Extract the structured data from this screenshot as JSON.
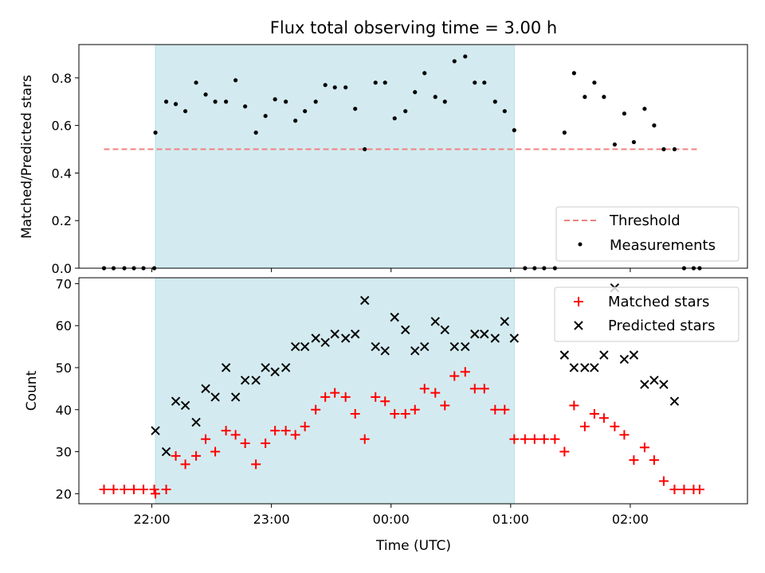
{
  "figure": {
    "title": "Flux total observing time = 3.00 h",
    "xlabel": "Time (UTC)",
    "x_ticks": [
      "22:00",
      "23:00",
      "00:00",
      "01:00",
      "02:00"
    ],
    "x_tick_hours": [
      22,
      23,
      24,
      25,
      26
    ],
    "x_range": [
      21.39,
      26.98
    ],
    "shaded_interval": [
      22.03,
      25.03
    ],
    "shade_color": "#d3ebf0"
  },
  "chart_data": [
    {
      "type": "scatter",
      "ylabel": "Matched/Predicted stars",
      "ylim": [
        0,
        0.94
      ],
      "y_ticks": [
        0.0,
        0.2,
        0.4,
        0.6,
        0.8
      ],
      "legend_position": "lower-right",
      "threshold": {
        "name": "Threshold",
        "value": 0.5,
        "x_range": [
          21.6,
          26.58
        ],
        "color": "#f08080"
      },
      "series": [
        {
          "name": "Measurements",
          "color": "#000000",
          "x": [
            21.6,
            21.68,
            21.77,
            21.85,
            21.93,
            22.02,
            22.03,
            22.12,
            22.2,
            22.28,
            22.37,
            22.45,
            22.53,
            22.62,
            22.7,
            22.78,
            22.87,
            22.95,
            23.03,
            23.12,
            23.2,
            23.28,
            23.37,
            23.45,
            23.53,
            23.62,
            23.7,
            23.78,
            23.87,
            23.95,
            24.03,
            24.12,
            24.2,
            24.28,
            24.37,
            24.45,
            24.53,
            24.62,
            24.7,
            24.78,
            24.87,
            24.95,
            25.03,
            25.12,
            25.2,
            25.28,
            25.37,
            25.45,
            25.53,
            25.62,
            25.7,
            25.78,
            25.87,
            25.95,
            26.03,
            26.12,
            26.2,
            26.28,
            26.37,
            26.45,
            26.53,
            26.58
          ],
          "y": [
            0,
            0,
            0,
            0,
            0,
            0,
            0.57,
            0.7,
            0.69,
            0.66,
            0.78,
            0.73,
            0.7,
            0.7,
            0.79,
            0.68,
            0.57,
            0.64,
            0.71,
            0.7,
            0.62,
            0.66,
            0.7,
            0.77,
            0.76,
            0.76,
            0.67,
            0.5,
            0.78,
            0.78,
            0.63,
            0.66,
            0.74,
            0.82,
            0.72,
            0.7,
            0.87,
            0.89,
            0.78,
            0.78,
            0.7,
            0.66,
            0.58,
            0,
            0,
            0,
            0,
            0.57,
            0.82,
            0.72,
            0.78,
            0.72,
            0.52,
            0.65,
            0.53,
            0.67,
            0.6,
            0.5,
            0.5,
            0,
            0,
            0
          ]
        }
      ]
    },
    {
      "type": "scatter",
      "ylabel": "Count",
      "ylim": [
        17.6,
        71.4
      ],
      "y_ticks": [
        20,
        30,
        40,
        50,
        60,
        70
      ],
      "legend_position": "upper-right",
      "series": [
        {
          "name": "Matched stars",
          "color": "#ff0000",
          "marker": "plus",
          "x": [
            21.6,
            21.68,
            21.77,
            21.85,
            21.93,
            22.02,
            22.03,
            22.12,
            22.2,
            22.28,
            22.37,
            22.45,
            22.53,
            22.62,
            22.7,
            22.78,
            22.87,
            22.95,
            23.03,
            23.12,
            23.2,
            23.28,
            23.37,
            23.45,
            23.53,
            23.62,
            23.7,
            23.78,
            23.87,
            23.95,
            24.03,
            24.12,
            24.2,
            24.28,
            24.37,
            24.45,
            24.53,
            24.62,
            24.7,
            24.78,
            24.87,
            24.95,
            25.03,
            25.12,
            25.2,
            25.28,
            25.37,
            25.45,
            25.53,
            25.62,
            25.7,
            25.78,
            25.87,
            25.95,
            26.03,
            26.12,
            26.2,
            26.28,
            26.37,
            26.45,
            26.53,
            26.58
          ],
          "y": [
            21,
            21,
            21,
            21,
            21,
            21,
            20,
            21,
            29,
            27,
            29,
            33,
            30,
            35,
            34,
            32,
            27,
            32,
            35,
            35,
            34,
            36,
            40,
            43,
            44,
            43,
            39,
            33,
            43,
            42,
            39,
            39,
            40,
            45,
            44,
            41,
            48,
            49,
            45,
            45,
            40,
            40,
            33,
            33,
            33,
            33,
            33,
            30,
            41,
            36,
            39,
            38,
            36,
            34,
            28,
            31,
            28,
            23,
            21,
            21,
            21,
            21
          ]
        },
        {
          "name": "Predicted stars",
          "color": "#000000",
          "marker": "x",
          "x": [
            22.03,
            22.12,
            22.2,
            22.28,
            22.37,
            22.45,
            22.53,
            22.62,
            22.7,
            22.78,
            22.87,
            22.95,
            23.03,
            23.12,
            23.2,
            23.28,
            23.37,
            23.45,
            23.53,
            23.62,
            23.7,
            23.78,
            23.87,
            23.95,
            24.03,
            24.12,
            24.2,
            24.28,
            24.37,
            24.45,
            24.53,
            24.62,
            24.7,
            24.78,
            24.87,
            24.95,
            25.03,
            25.45,
            25.53,
            25.62,
            25.7,
            25.78,
            25.87,
            25.95,
            26.03,
            26.12,
            26.2,
            26.28,
            26.37
          ],
          "y": [
            35,
            30,
            42,
            41,
            37,
            45,
            43,
            50,
            43,
            47,
            47,
            50,
            49,
            50,
            55,
            55,
            57,
            56,
            58,
            57,
            58,
            66,
            55,
            54,
            62,
            59,
            54,
            55,
            61,
            59,
            55,
            55,
            58,
            58,
            57,
            61,
            57,
            53,
            50,
            50,
            50,
            53,
            69,
            52,
            53,
            46,
            47,
            46,
            42
          ]
        }
      ]
    }
  ]
}
